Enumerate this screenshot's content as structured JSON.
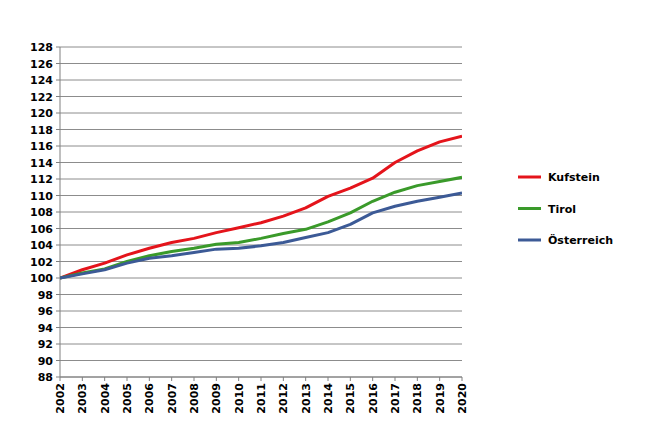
{
  "chart_data": {
    "type": "line",
    "categories": [
      "2002",
      "2003",
      "2004",
      "2005",
      "2006",
      "2007",
      "2008",
      "2009",
      "2010",
      "2011",
      "2012",
      "2013",
      "2014",
      "2015",
      "2016",
      "2017",
      "2018",
      "2019",
      "2020"
    ],
    "series": [
      {
        "name": "Kufstein",
        "color": "#e4141b",
        "values": [
          100,
          101.0,
          101.8,
          102.8,
          103.6,
          104.3,
          104.8,
          105.5,
          106.1,
          106.7,
          107.5,
          108.5,
          109.9,
          110.9,
          112.1,
          114.0,
          115.4,
          116.5,
          117.2
        ]
      },
      {
        "name": "Tirol",
        "color": "#3a9a2a",
        "values": [
          100,
          100.6,
          101.1,
          102.0,
          102.7,
          103.2,
          103.6,
          104.1,
          104.3,
          104.8,
          105.4,
          105.9,
          106.8,
          107.9,
          109.3,
          110.4,
          111.2,
          111.7,
          112.2
        ]
      },
      {
        "name": "Österreich",
        "color": "#3c5a96",
        "values": [
          100,
          100.5,
          101.0,
          101.8,
          102.4,
          102.7,
          103.1,
          103.5,
          103.6,
          103.9,
          104.3,
          104.9,
          105.5,
          106.5,
          107.9,
          108.7,
          109.3,
          109.8,
          110.3
        ]
      }
    ],
    "ylim": [
      88,
      128
    ],
    "yticks": [
      88,
      90,
      92,
      94,
      96,
      98,
      100,
      102,
      104,
      106,
      108,
      110,
      112,
      114,
      116,
      118,
      120,
      122,
      124,
      126,
      128
    ],
    "grid": true,
    "legend": "right"
  }
}
